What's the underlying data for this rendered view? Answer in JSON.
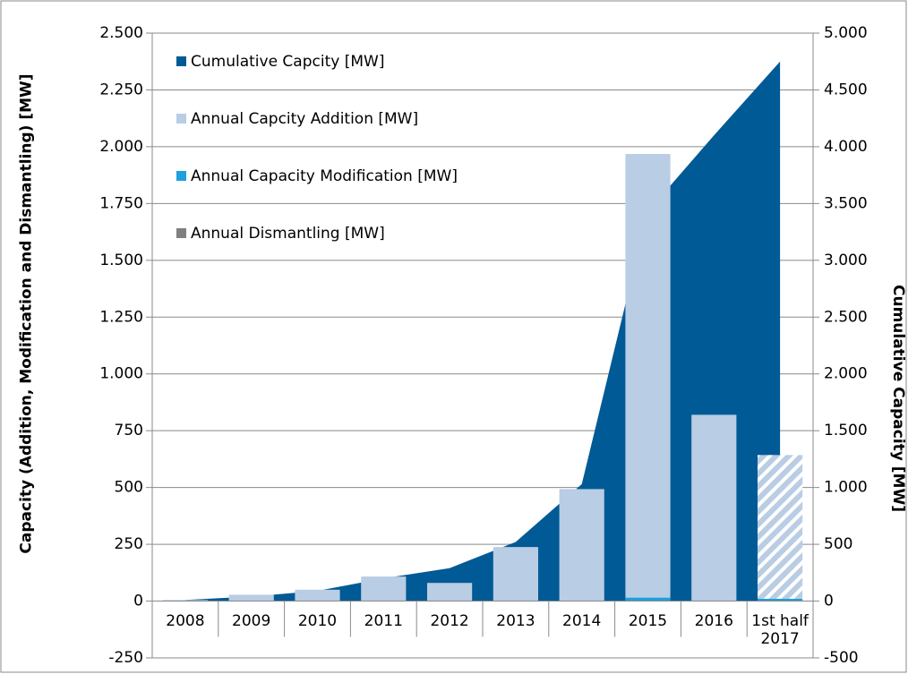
{
  "chart_data": {
    "type": "bar",
    "y_title": "Capacity (Addition, Modification and Dismantling) [MW]",
    "y2_title": "Cumulative Capacity [MW]",
    "categories": [
      "2008",
      "2009",
      "2010",
      "2011",
      "2012",
      "2013",
      "2014",
      "2015",
      "2016",
      "1st half 2017"
    ],
    "series": [
      {
        "name": "Cumulative Capcity [MW]",
        "color": "#005a96",
        "kind": "area",
        "axis": "y2",
        "values": [
          10,
          40,
          90,
          200,
          290,
          520,
          1030,
          3430,
          4100,
          4750
        ]
      },
      {
        "name": "Annual Capcity Addition [MW]",
        "color": "#b9cde4",
        "kind": "bar",
        "hatch_index": 9,
        "values": [
          5,
          28,
          50,
          108,
          80,
          238,
          493,
          1968,
          820,
          643
        ]
      },
      {
        "name": "Annual Capacity Modification [MW]",
        "color": "#1ea0dc",
        "kind": "bar",
        "values": [
          0,
          0,
          0,
          0,
          0,
          0,
          0,
          15,
          0,
          10
        ]
      },
      {
        "name": "Annual Dismantling [MW]",
        "color": "#808080",
        "kind": "bar",
        "values": [
          0,
          0,
          0,
          0,
          0,
          0,
          0,
          0,
          0,
          0
        ]
      }
    ],
    "ylim": [
      -250,
      2500
    ],
    "yticks": [
      -250,
      0,
      250,
      500,
      750,
      {
        "value": 1000,
        "label": "1.000"
      },
      {
        "value": 1250,
        "label": "1.250"
      },
      {
        "value": 1500,
        "label": "1.500"
      },
      {
        "value": 1750,
        "label": "1.750"
      },
      {
        "value": 2000,
        "label": "2.000"
      },
      {
        "value": 2250,
        "label": "2.250"
      },
      {
        "value": 2500,
        "label": "2.500"
      }
    ],
    "y2lim": [
      -500,
      5000
    ],
    "y2ticks": [
      -500,
      0,
      500,
      {
        "value": 1000,
        "label": "1.000"
      },
      {
        "value": 1500,
        "label": "1.500"
      },
      {
        "value": 2000,
        "label": "2.000"
      },
      {
        "value": 2500,
        "label": "2.500"
      },
      {
        "value": 3000,
        "label": "3.000"
      },
      {
        "value": 3500,
        "label": "3.500"
      },
      {
        "value": 4000,
        "label": "4.000"
      },
      {
        "value": 4500,
        "label": "4.500"
      },
      {
        "value": 5000,
        "label": "5.000"
      }
    ],
    "grid": true,
    "legend": "top-left"
  }
}
